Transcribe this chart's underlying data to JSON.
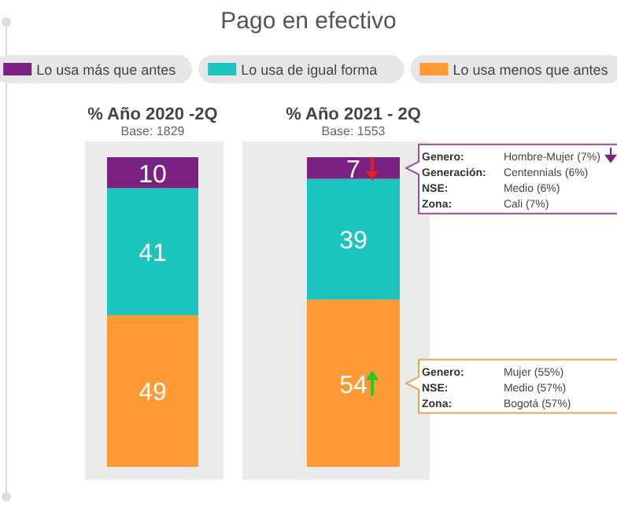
{
  "chart_data": {
    "type": "bar",
    "title": "Pago en efectivo",
    "stacked": true,
    "data_labels": true,
    "legend": "top",
    "categories": [
      "% Año 2020 -2Q",
      "% Año 2021 - 2Q"
    ],
    "series": [
      {
        "name": "Lo usa menos que antes",
        "color": "#ff9933",
        "values": [
          49,
          54
        ]
      },
      {
        "name": "Lo usa de igual forma",
        "color": "#1cc4c0",
        "values": [
          41,
          39
        ]
      },
      {
        "name": "Lo usa más que antes",
        "color": "#7b2181",
        "values": [
          10,
          7
        ]
      }
    ],
    "annotations": [
      "Base: 1829",
      "Base: 1553",
      "Genero: Hombre-Mujer (7%)\nGeneración: Centennials (6%)\nNSE: Medio (6%)\nZona: Cali (7%)",
      "Genero: Mujer (55%)\nNSE: Medio (57%)\nZona: Bogotá (57%)"
    ]
  }
}
